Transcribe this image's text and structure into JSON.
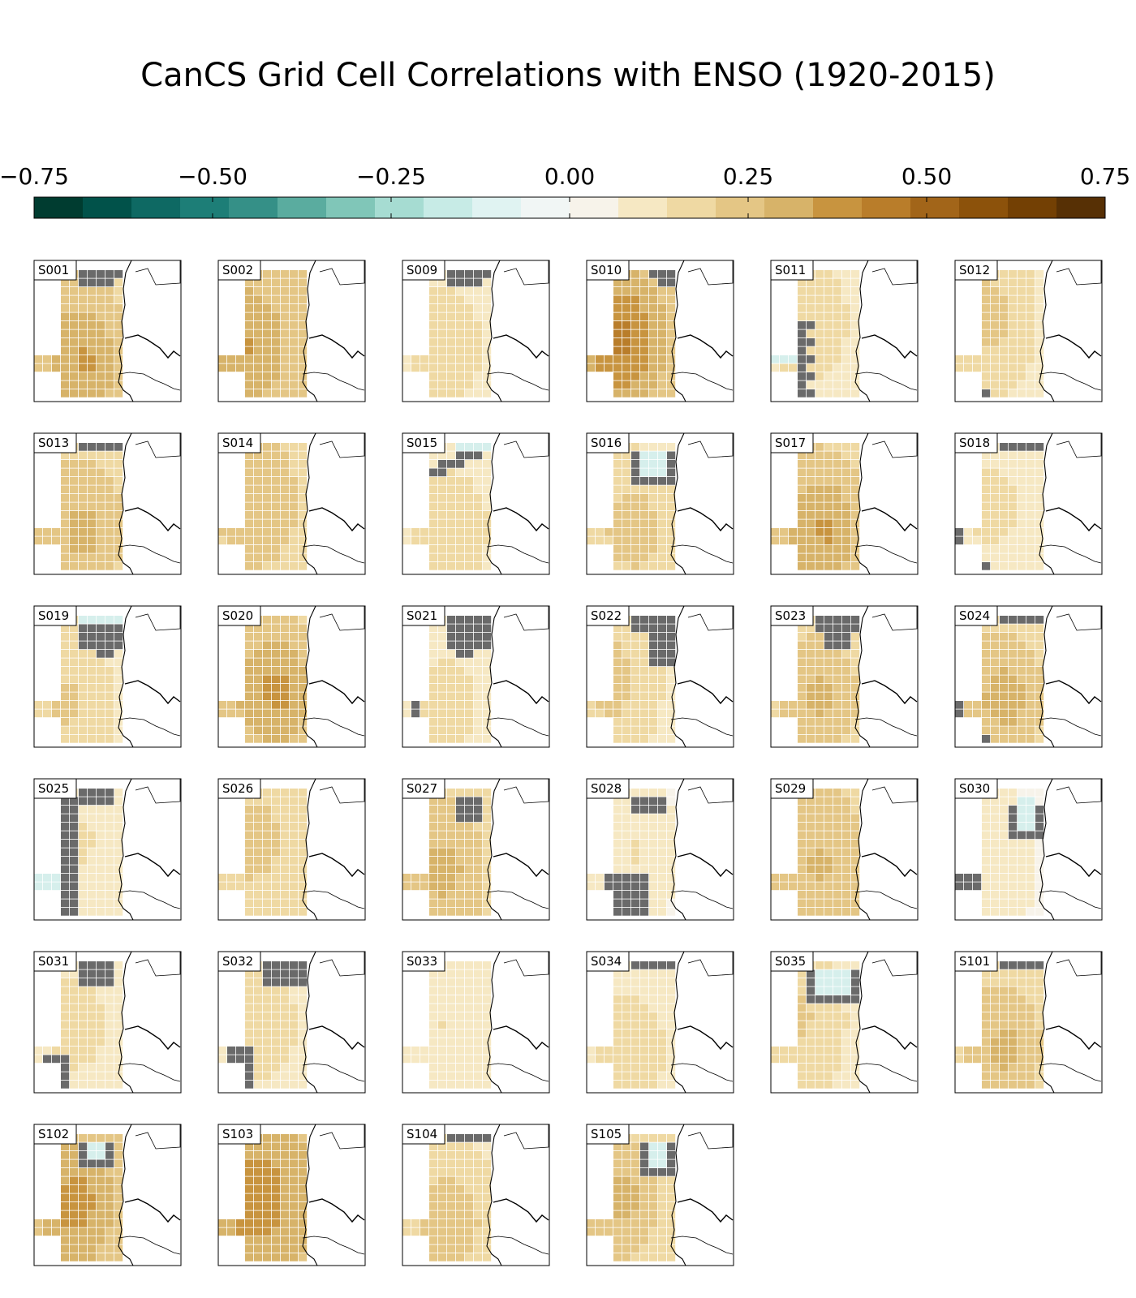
{
  "title": "CanCS Grid Cell Correlations with ENSO (1920-2015)",
  "colors": {
    "missing": "#6a6a6a",
    "outline": "#000000",
    "colormap": "BrBG_r",
    "levels": [
      "#003c30",
      "#01524a",
      "#0e6963",
      "#1d7e77",
      "#359087",
      "#5aac9f",
      "#80c6b8",
      "#a6dcd2",
      "#c7ebe6",
      "#e0f3f2",
      "#f1f6f5",
      "#f7f3ea",
      "#f6e8c3",
      "#efd9a3",
      "#e4c685",
      "#d7b369",
      "#c8943f",
      "#b97d2a",
      "#a26519",
      "#8c520b",
      "#734004",
      "#573005"
    ]
  },
  "chart_data": {
    "type": "heatmap",
    "title": "CanCS Grid Cell Correlations with ENSO (1920-2015)",
    "colorbar": {
      "vmin": -0.75,
      "vmax": 0.75,
      "step": 0.0682,
      "ticks": [
        -0.75,
        -0.5,
        -0.25,
        0.0,
        0.25,
        0.5,
        0.75
      ],
      "tick_labels": [
        "−0.75",
        "−0.50",
        "−0.25",
        "0.00",
        "0.25",
        "0.50",
        "0.75"
      ],
      "placement": "top"
    },
    "panels": [
      {
        "label": "S001",
        "base": 0.22,
        "hot": [
          0.6,
          0.72
        ],
        "amp": 0.16,
        "miss": "n3"
      },
      {
        "label": "S002",
        "base": 0.24,
        "hot": [
          0.35,
          0.6
        ],
        "amp": 0.12,
        "miss": "none"
      },
      {
        "label": "S009",
        "base": 0.12,
        "hot": [
          0.55,
          0.6
        ],
        "amp": 0.1,
        "miss": "n3"
      },
      {
        "label": "S010",
        "base": 0.26,
        "hot": [
          0.4,
          0.55
        ],
        "amp": 0.2,
        "miss": "n3s"
      },
      {
        "label": "S011",
        "base": 0.12,
        "hot": [
          0.5,
          0.4
        ],
        "amp": 0.1,
        "miss": "west"
      },
      {
        "label": "S012",
        "base": 0.15,
        "hot": [
          0.4,
          0.35
        ],
        "amp": 0.1,
        "miss": "dot"
      },
      {
        "label": "S013",
        "base": 0.2,
        "hot": [
          0.6,
          0.7
        ],
        "amp": 0.12,
        "miss": "n1"
      },
      {
        "label": "S014",
        "base": 0.2,
        "hot": [
          0.5,
          0.45
        ],
        "amp": 0.08,
        "miss": "none"
      },
      {
        "label": "S015",
        "base": 0.12,
        "hot": [
          0.65,
          0.7
        ],
        "amp": 0.1,
        "miss": "cap15"
      },
      {
        "label": "S016",
        "base": 0.15,
        "hot": [
          0.6,
          0.7
        ],
        "amp": 0.12,
        "miss": "cap16"
      },
      {
        "label": "S017",
        "base": 0.22,
        "hot": [
          0.65,
          0.7
        ],
        "amp": 0.16,
        "miss": "none"
      },
      {
        "label": "S018",
        "base": 0.1,
        "hot": [
          0.5,
          0.5
        ],
        "amp": 0.08,
        "miss": "n1w"
      },
      {
        "label": "S019",
        "base": 0.15,
        "hot": [
          0.4,
          0.7
        ],
        "amp": 0.08,
        "miss": "cap19"
      },
      {
        "label": "S020",
        "base": 0.22,
        "hot": [
          0.7,
          0.6
        ],
        "amp": 0.18,
        "miss": "w1"
      },
      {
        "label": "S021",
        "base": 0.1,
        "hot": [
          0.6,
          0.7
        ],
        "amp": 0.1,
        "miss": "cap21"
      },
      {
        "label": "S022",
        "base": 0.15,
        "hot": [
          0.3,
          0.5
        ],
        "amp": 0.1,
        "miss": "cap22"
      },
      {
        "label": "S023",
        "base": 0.18,
        "hot": [
          0.6,
          0.65
        ],
        "amp": 0.14,
        "miss": "cap23"
      },
      {
        "label": "S024",
        "base": 0.18,
        "hot": [
          0.6,
          0.65
        ],
        "amp": 0.16,
        "miss": "n1w"
      },
      {
        "label": "S025",
        "base": 0.12,
        "hot": [
          0.6,
          0.4
        ],
        "amp": 0.04,
        "miss": "west25"
      },
      {
        "label": "S026",
        "base": 0.18,
        "hot": [
          0.5,
          0.4
        ],
        "amp": 0.06,
        "miss": "none"
      },
      {
        "label": "S027",
        "base": 0.2,
        "hot": [
          0.5,
          0.65
        ],
        "amp": 0.12,
        "miss": "cap27"
      },
      {
        "label": "S028",
        "base": 0.08,
        "hot": [
          0.6,
          0.5
        ],
        "amp": 0.08,
        "miss": "ring28"
      },
      {
        "label": "S029",
        "base": 0.22,
        "hot": [
          0.6,
          0.6
        ],
        "amp": 0.08,
        "miss": "none"
      },
      {
        "label": "S030",
        "base": 0.08,
        "hot": [
          0.5,
          0.6
        ],
        "amp": 0.06,
        "miss": "cap30"
      },
      {
        "label": "S031",
        "base": 0.12,
        "hot": [
          0.6,
          0.5
        ],
        "amp": 0.06,
        "miss": "cap31"
      },
      {
        "label": "S032",
        "base": 0.12,
        "hot": [
          0.6,
          0.5
        ],
        "amp": 0.08,
        "miss": "cap32"
      },
      {
        "label": "S033",
        "base": 0.1,
        "hot": [
          0.5,
          0.5
        ],
        "amp": 0.05,
        "miss": "none"
      },
      {
        "label": "S034",
        "base": 0.12,
        "hot": [
          0.6,
          0.7
        ],
        "amp": 0.08,
        "miss": "n1"
      },
      {
        "label": "S035",
        "base": 0.15,
        "hot": [
          0.3,
          0.45
        ],
        "amp": 0.08,
        "miss": "cap35"
      },
      {
        "label": "S101",
        "base": 0.18,
        "hot": [
          0.6,
          0.7
        ],
        "amp": 0.14,
        "miss": "n1"
      },
      {
        "label": "S102",
        "base": 0.24,
        "hot": [
          0.5,
          0.55
        ],
        "amp": 0.16,
        "miss": "cap102"
      },
      {
        "label": "S103",
        "base": 0.3,
        "hot": [
          0.5,
          0.5
        ],
        "amp": 0.1,
        "miss": "none"
      },
      {
        "label": "S104",
        "base": 0.16,
        "hot": [
          0.6,
          0.7
        ],
        "amp": 0.12,
        "miss": "n1"
      },
      {
        "label": "S105",
        "base": 0.18,
        "hot": [
          0.4,
          0.5
        ],
        "amp": 0.14,
        "miss": "cap105"
      }
    ]
  }
}
